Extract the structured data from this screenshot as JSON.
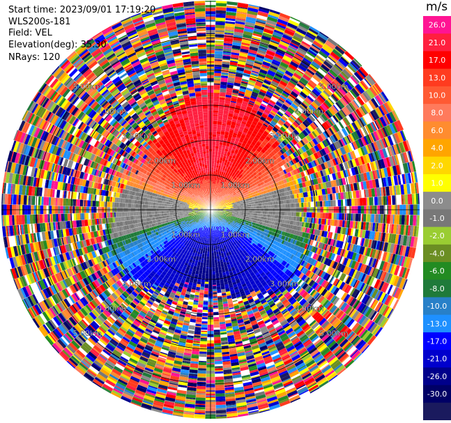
{
  "info": {
    "start_time": "Start time: 2023/09/01 17:19:20",
    "instrument": "WLS200s-181",
    "field": "Field: VEL",
    "elevation": "Elevation(deg): 35.30",
    "nrays": "NRays: 120"
  },
  "chart_data": {
    "type": "heatmap",
    "title": "",
    "field": "VEL",
    "units": "m/s",
    "n_rays": 120,
    "max_range_km": 6.0,
    "range_rings_km": [
      1,
      2,
      3,
      4,
      5
    ],
    "ring_labels": [
      "1.00km",
      "2.00km",
      "3.00km",
      "4.00km",
      "5.00km"
    ],
    "colorbar": {
      "title": "m/s",
      "ticks": [
        "26.0",
        "21.0",
        "17.0",
        "13.0",
        "10.0",
        "8.0",
        "6.0",
        "4.0",
        "2.0",
        "1.0",
        "0.0",
        "-1.0",
        "-2.0",
        "-4.0",
        "-6.0",
        "-8.0",
        "-10.0",
        "-13.0",
        "-17.0",
        "-21.0",
        "-26.0",
        "-30.0"
      ],
      "colors": [
        "#ff1493",
        "#ff1f3f",
        "#ff0000",
        "#ff3b1f",
        "#ff5a33",
        "#ff7a5c",
        "#ff8c2f",
        "#ffa500",
        "#ffd700",
        "#ffff00",
        "#8c8c8c",
        "#787878",
        "#9acd32",
        "#6b8e23",
        "#228b22",
        "#1f7a3a",
        "#2880c8",
        "#1e90ff",
        "#0000ff",
        "#0000cd",
        "#00008b",
        "#000066",
        "#1a1a5e"
      ]
    }
  }
}
